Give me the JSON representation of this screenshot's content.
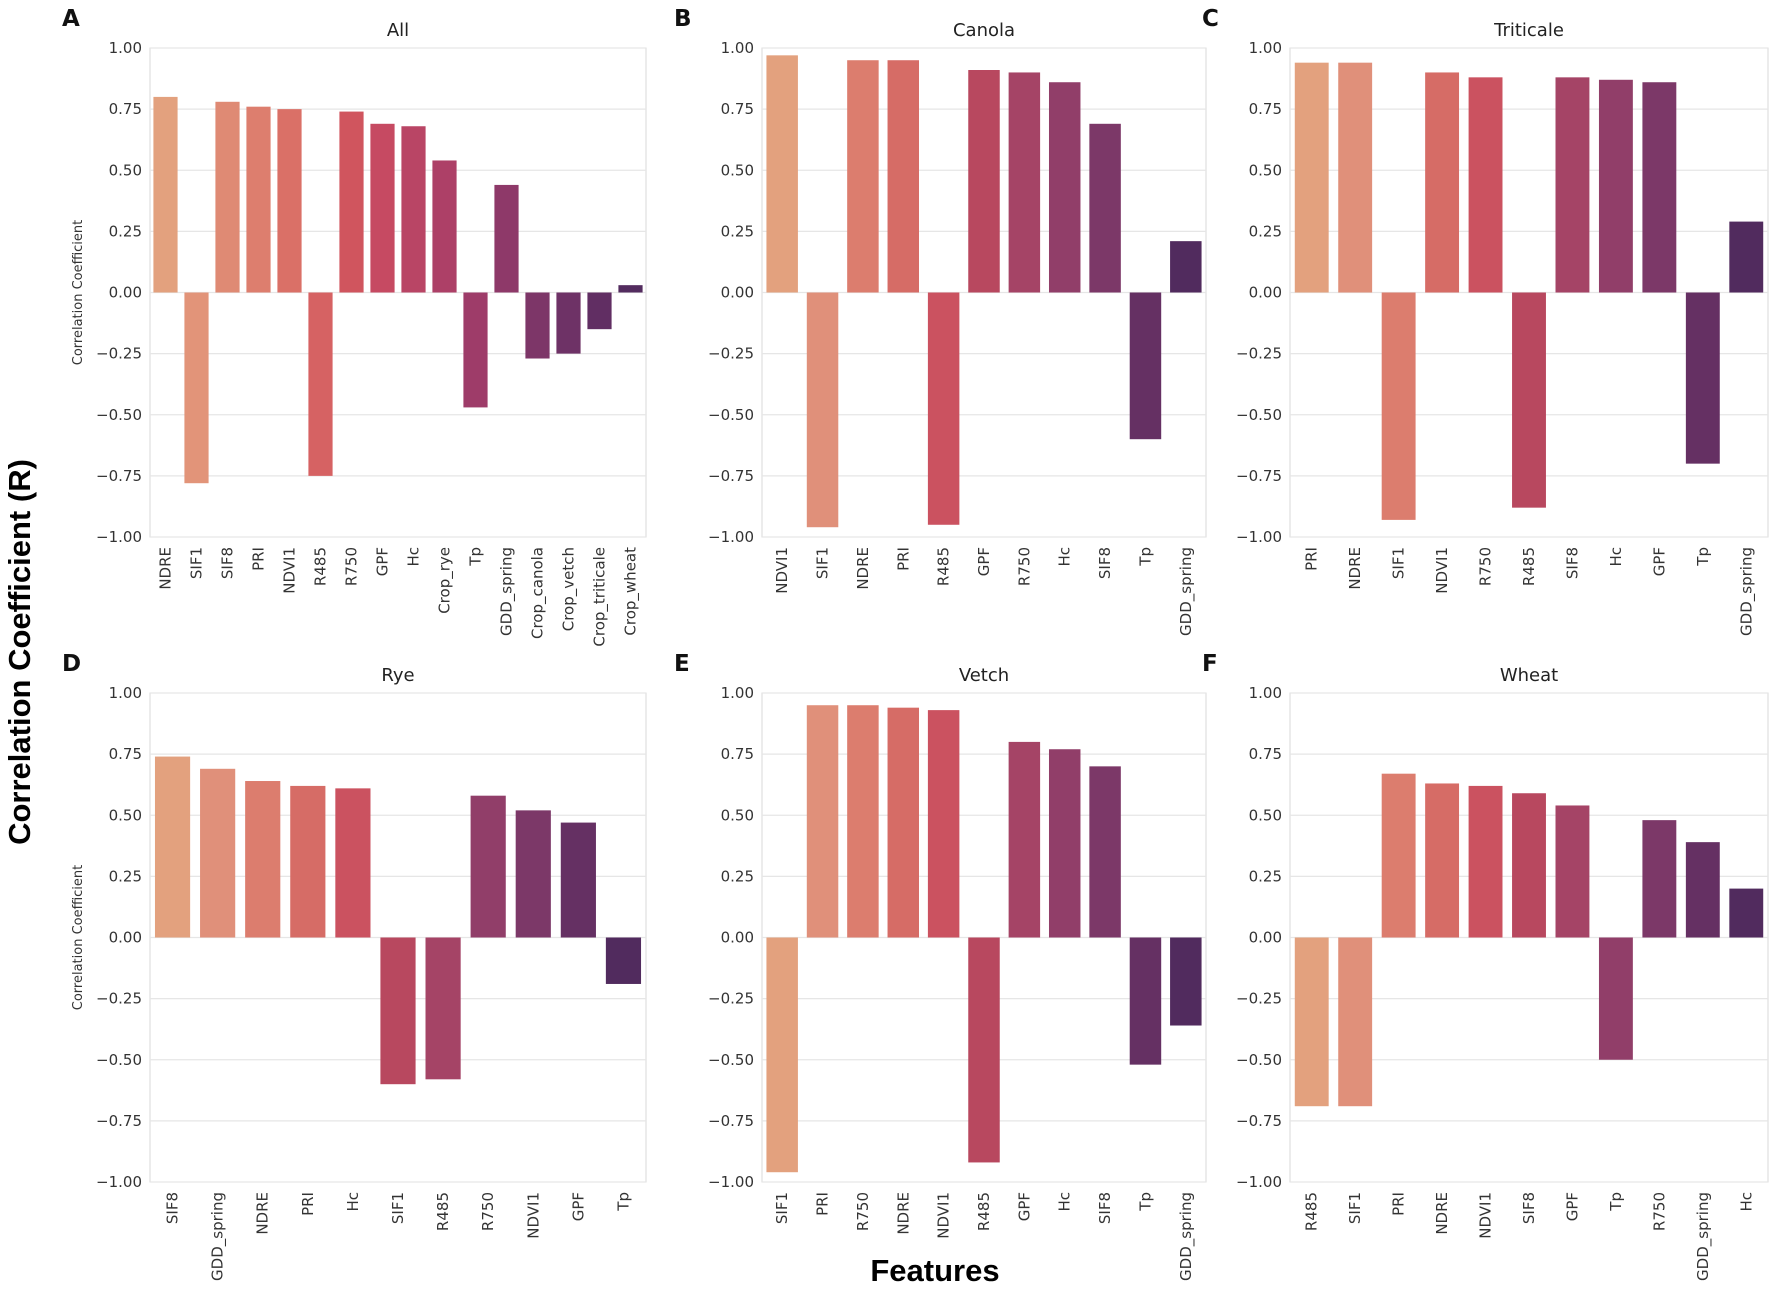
{
  "figure": {
    "supylabel": "Correlation Coefficient (R)",
    "supxlabel": "Features"
  },
  "chart_data": [
    {
      "type": "bar",
      "letter": "A",
      "title": "All",
      "ylabel": "Correlation Coefficient",
      "ylim": [
        -1.0,
        1.0
      ],
      "yticks": [
        "1.00",
        "0.75",
        "0.50",
        "0.25",
        "0.00",
        "−0.25",
        "−0.50",
        "−0.75",
        "−1.00"
      ],
      "categories": [
        "NDRE",
        "SIF1",
        "SIF8",
        "PRI",
        "NDVI1",
        "R485",
        "R750",
        "GPF",
        "Hc",
        "Crop_rye",
        "Tp",
        "GDD_spring",
        "Crop_canola",
        "Crop_vetch",
        "Crop_triticale",
        "Crop_wheat"
      ],
      "values": [
        0.8,
        -0.78,
        0.78,
        0.76,
        0.75,
        -0.75,
        0.74,
        0.69,
        0.68,
        0.54,
        -0.47,
        0.44,
        -0.27,
        -0.25,
        -0.15,
        0.03
      ],
      "colors": [
        "#e3a17e",
        "#e29479",
        "#df8a74",
        "#dd7e6e",
        "#da7067",
        "#d66263",
        "#d0555e",
        "#c64a62",
        "#b94565",
        "#ad4067",
        "#9e3c69",
        "#8e3969",
        "#7d3668",
        "#6e3266",
        "#612e63",
        "#532c5f"
      ],
      "grid": true
    },
    {
      "type": "bar",
      "letter": "B",
      "title": "Canola",
      "ylabel": "",
      "ylim": [
        -1.0,
        1.0
      ],
      "yticks": [
        "1.00",
        "0.75",
        "0.50",
        "0.25",
        "0.00",
        "−0.25",
        "−0.50",
        "−0.75",
        "−1.00"
      ],
      "categories": [
        "NDVI1",
        "SIF1",
        "NDRE",
        "PRI",
        "R485",
        "GPF",
        "R750",
        "Hc",
        "SIF8",
        "Tp",
        "GDD_spring"
      ],
      "values": [
        0.97,
        -0.96,
        0.95,
        0.95,
        -0.95,
        0.91,
        0.9,
        0.86,
        0.69,
        -0.6,
        0.21
      ],
      "colors": [
        "#e3a17e",
        "#e0907a",
        "#dc7d6e",
        "#d66c66",
        "#cb5260",
        "#b8485f",
        "#a54466",
        "#913e69",
        "#7c3868",
        "#653063",
        "#512b5e"
      ],
      "grid": true
    },
    {
      "type": "bar",
      "letter": "C",
      "title": "Triticale",
      "ylabel": "",
      "ylim": [
        -1.0,
        1.0
      ],
      "yticks": [
        "1.00",
        "0.75",
        "0.50",
        "0.25",
        "0.00",
        "−0.25",
        "−0.50",
        "−0.75",
        "−1.00"
      ],
      "categories": [
        "PRI",
        "NDRE",
        "SIF1",
        "NDVI1",
        "R750",
        "R485",
        "SIF8",
        "Hc",
        "GPF",
        "Tp",
        "GDD_spring"
      ],
      "values": [
        0.94,
        0.94,
        -0.93,
        0.9,
        0.88,
        -0.88,
        0.88,
        0.87,
        0.86,
        -0.7,
        0.29
      ],
      "colors": [
        "#e3a17e",
        "#e0907a",
        "#dc7d6e",
        "#d66c66",
        "#cb5260",
        "#b8485f",
        "#a54466",
        "#913e69",
        "#7c3868",
        "#653063",
        "#512b5e"
      ],
      "grid": true
    },
    {
      "type": "bar",
      "letter": "D",
      "title": "Rye",
      "ylabel": "Correlation Coefficient",
      "ylim": [
        -1.0,
        1.0
      ],
      "yticks": [
        "1.00",
        "0.75",
        "0.50",
        "0.25",
        "0.00",
        "−0.25",
        "−0.50",
        "−0.75",
        "−1.00"
      ],
      "categories": [
        "SIF8",
        "GDD_spring",
        "NDRE",
        "PRI",
        "Hc",
        "SIF1",
        "R485",
        "R750",
        "NDVI1",
        "GPF",
        "Tp"
      ],
      "values": [
        0.74,
        0.69,
        0.64,
        0.62,
        0.61,
        -0.6,
        -0.58,
        0.58,
        0.52,
        0.47,
        -0.19
      ],
      "colors": [
        "#e3a17e",
        "#e0907a",
        "#dc7d6e",
        "#d66c66",
        "#cb5260",
        "#b8485f",
        "#a54466",
        "#913e69",
        "#7c3868",
        "#653063",
        "#512b5e"
      ],
      "grid": true
    },
    {
      "type": "bar",
      "letter": "E",
      "title": "Vetch",
      "ylabel": "",
      "ylim": [
        -1.0,
        1.0
      ],
      "yticks": [
        "1.00",
        "0.75",
        "0.50",
        "0.25",
        "0.00",
        "−0.25",
        "−0.50",
        "−0.75",
        "−1.00"
      ],
      "categories": [
        "SIF1",
        "PRI",
        "R750",
        "NDRE",
        "NDVI1",
        "R485",
        "GPF",
        "Hc",
        "SIF8",
        "Tp",
        "GDD_spring"
      ],
      "values": [
        -0.96,
        0.95,
        0.95,
        0.94,
        0.93,
        -0.92,
        0.8,
        0.77,
        0.7,
        -0.52,
        -0.36
      ],
      "colors": [
        "#e3a17e",
        "#e0907a",
        "#dc7d6e",
        "#d66c66",
        "#cb5260",
        "#b8485f",
        "#a54466",
        "#913e69",
        "#7c3868",
        "#653063",
        "#512b5e"
      ],
      "grid": true
    },
    {
      "type": "bar",
      "letter": "F",
      "title": "Wheat",
      "ylabel": "",
      "ylim": [
        -1.0,
        1.0
      ],
      "yticks": [
        "1.00",
        "0.75",
        "0.50",
        "0.25",
        "0.00",
        "−0.25",
        "−0.50",
        "−0.75",
        "−1.00"
      ],
      "categories": [
        "R485",
        "SIF1",
        "PRI",
        "NDRE",
        "NDVI1",
        "SIF8",
        "GPF",
        "Tp",
        "R750",
        "GDD_spring",
        "Hc"
      ],
      "values": [
        -0.69,
        -0.69,
        0.67,
        0.63,
        0.62,
        0.59,
        0.54,
        -0.5,
        0.48,
        0.39,
        0.2
      ],
      "colors": [
        "#e3a17e",
        "#e0907a",
        "#dc7d6e",
        "#d66c66",
        "#cb5260",
        "#b8485f",
        "#a54466",
        "#913e69",
        "#7c3868",
        "#653063",
        "#512b5e"
      ],
      "grid": true
    }
  ]
}
